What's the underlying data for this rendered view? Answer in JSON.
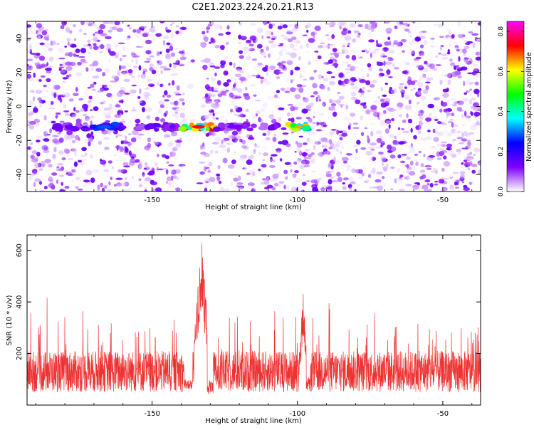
{
  "title": "C2E1.2023.224.20.21.R13",
  "chart_data": [
    {
      "type": "heatmap",
      "xlabel": "Height of straight line (km)",
      "ylabel": "Frequency (Hz)",
      "xlim": [
        -193,
        -37
      ],
      "ylim": [
        -50,
        50
      ],
      "xticks": [
        -150,
        -100,
        -50
      ],
      "yticks": [
        -40,
        -20,
        0,
        20,
        40
      ],
      "colorbar": {
        "label": "Normalized spectral amplitude",
        "range": [
          0.0,
          0.85
        ],
        "ticks": [
          0.0,
          0.2,
          0.4,
          0.6,
          0.8
        ],
        "colors": [
          "#ffffff",
          "#7f00ff",
          "#0000ff",
          "#00ffff",
          "#00ff00",
          "#ffff00",
          "#ff0000",
          "#ff00ff"
        ]
      },
      "background_noise": {
        "level_range": [
          0.0,
          0.15
        ]
      },
      "gaps": [
        {
          "x_from": -139,
          "x_to": -133,
          "note_level": 0
        }
      ],
      "signal_band": {
        "frequency_hz": -12,
        "segments": [
          {
            "x_from": -183,
            "x_to": -174,
            "level": 0.15
          },
          {
            "x_from": -173,
            "x_to": -160,
            "level": 0.28
          },
          {
            "x_from": -155,
            "x_to": -148,
            "level": 0.16
          },
          {
            "x_from": -146,
            "x_to": -140,
            "level": 0.15
          },
          {
            "x_from": -140,
            "x_to": -128,
            "level": 0.75
          },
          {
            "x_from": -128,
            "x_to": -116,
            "level": 0.14
          },
          {
            "x_from": -112,
            "x_to": -106,
            "level": 0.14
          },
          {
            "x_from": -103,
            "x_to": -96,
            "level": 0.65
          }
        ]
      }
    },
    {
      "type": "line",
      "xlabel": "Height of straight line (km)",
      "ylabel": "SNR (10 * v/v)",
      "xlim": [
        -193,
        -37
      ],
      "ylim": [
        0,
        660
      ],
      "xticks": [
        -150,
        -100,
        -50
      ],
      "yticks": [
        200,
        400,
        600
      ],
      "series": [
        {
          "color": "#ee3333",
          "baseline": 130,
          "spread": 80,
          "spikes_up_to": 430,
          "peaks": [
            {
              "x": -133,
              "value": 660
            },
            {
              "x": -98,
              "value": 440
            }
          ]
        }
      ]
    }
  ]
}
